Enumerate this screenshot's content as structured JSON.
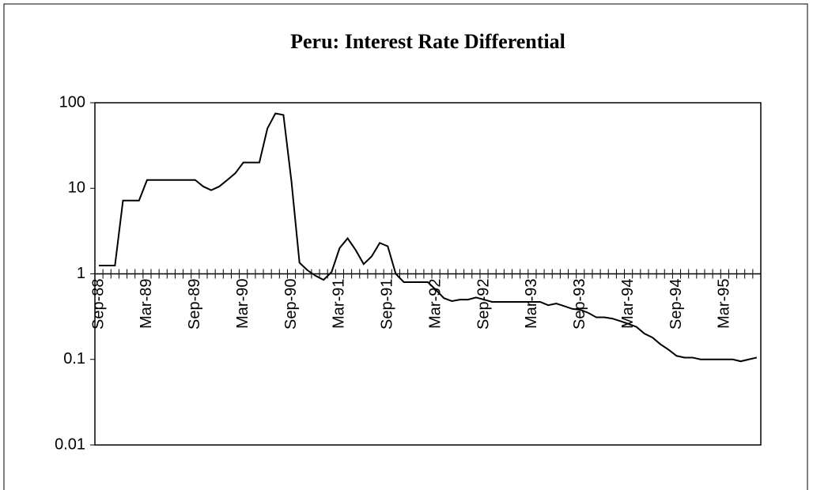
{
  "chart_data": {
    "type": "line",
    "title": "Peru: Interest Rate Differential",
    "categories": [
      "Sep-88",
      null,
      null,
      null,
      null,
      null,
      "Mar-89",
      null,
      null,
      null,
      null,
      null,
      "Sep-89",
      null,
      null,
      null,
      null,
      null,
      "Mar-90",
      null,
      null,
      null,
      null,
      null,
      "Sep-90",
      null,
      null,
      null,
      null,
      null,
      "Mar-91",
      null,
      null,
      null,
      null,
      null,
      "Sep-91",
      null,
      null,
      null,
      null,
      null,
      "Mar-92",
      null,
      null,
      null,
      null,
      null,
      "Sep-92",
      null,
      null,
      null,
      null,
      null,
      "Mar-93",
      null,
      null,
      null,
      null,
      null,
      "Sep-93",
      null,
      null,
      null,
      null,
      null,
      "Mar-94",
      null,
      null,
      null,
      null,
      null,
      "Sep-94",
      null,
      null,
      null,
      null,
      null,
      "Mar-95",
      null,
      null,
      null,
      null
    ],
    "values": [
      1.25,
      1.25,
      1.25,
      7.2,
      7.2,
      7.2,
      12.5,
      12.5,
      12.5,
      12.5,
      12.5,
      12.5,
      12.5,
      10.5,
      9.5,
      10.5,
      12.5,
      15,
      20,
      20,
      20,
      50,
      75,
      72,
      12,
      1.35,
      1.1,
      0.95,
      0.85,
      1.05,
      2.0,
      2.6,
      1.9,
      1.3,
      1.6,
      2.3,
      2.1,
      1.0,
      0.8,
      0.8,
      0.8,
      0.8,
      0.65,
      0.52,
      0.48,
      0.5,
      0.5,
      0.53,
      0.5,
      0.47,
      0.47,
      0.47,
      0.47,
      0.47,
      0.47,
      0.47,
      0.43,
      0.45,
      0.42,
      0.39,
      0.38,
      0.35,
      0.31,
      0.31,
      0.3,
      0.28,
      0.26,
      0.24,
      0.2,
      0.18,
      0.15,
      0.13,
      0.11,
      0.105,
      0.105,
      0.1,
      0.1,
      0.1,
      0.1,
      0.1,
      0.095,
      0.1,
      0.105
    ],
    "color": "#000000",
    "ylim": [
      0.01,
      100
    ],
    "yticks": [
      0.01,
      0.1,
      1,
      10,
      100
    ],
    "log_scale": true,
    "x_axis_crosses": 1
  }
}
